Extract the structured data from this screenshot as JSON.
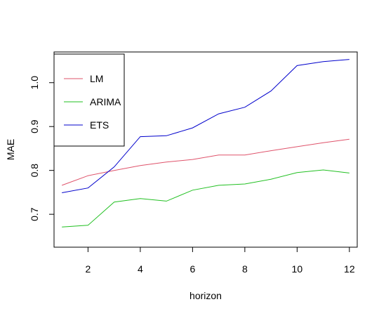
{
  "chart_data": {
    "type": "line",
    "title": "",
    "xlabel": "horizon",
    "ylabel": "MAE",
    "xlim": [
      0.7,
      12.3
    ],
    "ylim": [
      0.625,
      1.07
    ],
    "x": [
      1,
      2,
      3,
      4,
      5,
      6,
      7,
      8,
      9,
      10,
      11,
      12
    ],
    "x_ticks": [
      2,
      4,
      6,
      8,
      10,
      12
    ],
    "y_ticks": [
      0.7,
      0.8,
      0.9,
      1.0
    ],
    "y_tick_labels": [
      "0.7",
      "0.8",
      "0.9",
      "1.0"
    ],
    "grid": false,
    "legend_position": "top-left",
    "series": [
      {
        "name": "LM",
        "color": "#DF536B",
        "values": [
          0.766,
          0.788,
          0.8,
          0.811,
          0.819,
          0.825,
          0.835,
          0.835,
          0.845,
          0.854,
          0.863,
          0.871
        ]
      },
      {
        "name": "ARIMA",
        "color": "#22C022",
        "values": [
          0.671,
          0.675,
          0.728,
          0.736,
          0.73,
          0.755,
          0.766,
          0.769,
          0.78,
          0.795,
          0.801,
          0.794
        ]
      },
      {
        "name": "ETS",
        "color": "#0000CC",
        "values": [
          0.749,
          0.76,
          0.808,
          0.877,
          0.879,
          0.897,
          0.929,
          0.944,
          0.981,
          1.039,
          1.048,
          1.053
        ]
      }
    ]
  }
}
